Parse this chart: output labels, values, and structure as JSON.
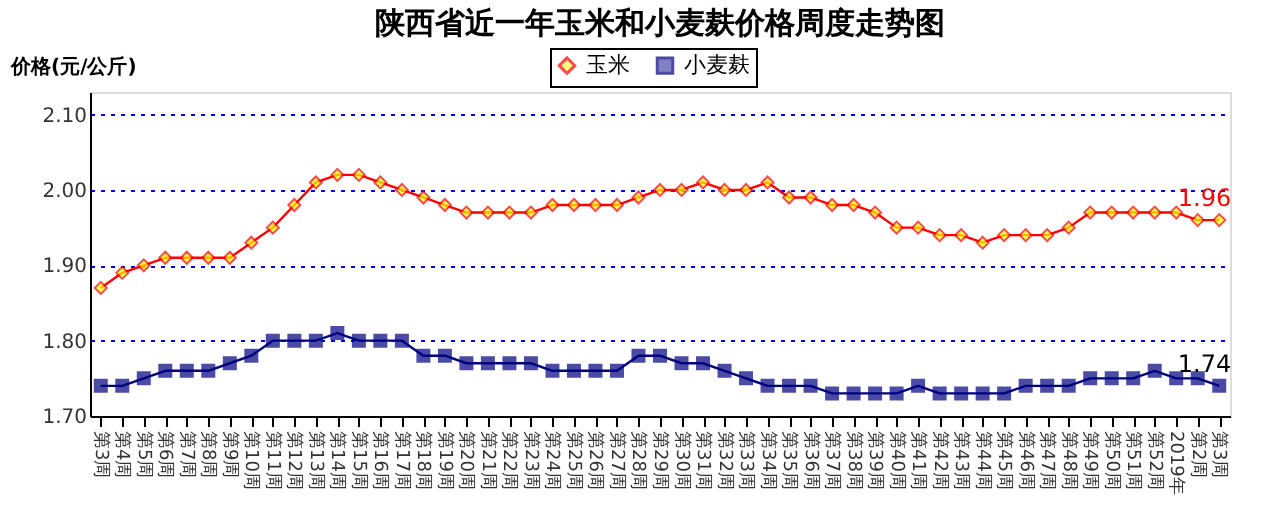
{
  "chart_data": {
    "type": "line",
    "title": "陕西省近一年玉米和小麦麸价格周度走势图",
    "ylabel": "价格(元/公斤)",
    "categories": [
      "第3周",
      "第4周",
      "第5周",
      "第6周",
      "第7周",
      "第8周",
      "第9周",
      "第10周",
      "第11周",
      "第12周",
      "第13周",
      "第14周",
      "第15周",
      "第16周",
      "第17周",
      "第18周",
      "第19周",
      "第20周",
      "第21周",
      "第22周",
      "第23周",
      "第24周",
      "第25周",
      "第26周",
      "第27周",
      "第28周",
      "第29周",
      "第30周",
      "第31周",
      "第32周",
      "第33周",
      "第34周",
      "第35周",
      "第36周",
      "第37周",
      "第38周",
      "第39周",
      "第40周",
      "第41周",
      "第42周",
      "第43周",
      "第44周",
      "第45周",
      "第46周",
      "第47周",
      "第48周",
      "第49周",
      "第50周",
      "第51周",
      "第52周",
      "2019年",
      "第2周",
      "第3周"
    ],
    "series": [
      {
        "name": "玉米",
        "color": "#ff0000",
        "marker": "diamond",
        "values": [
          1.87,
          1.89,
          1.9,
          1.91,
          1.91,
          1.91,
          1.91,
          1.93,
          1.95,
          1.98,
          2.01,
          2.02,
          2.02,
          2.01,
          2.0,
          1.99,
          1.98,
          1.97,
          1.97,
          1.97,
          1.97,
          1.98,
          1.98,
          1.98,
          1.98,
          1.99,
          2.0,
          2.0,
          2.01,
          2.0,
          2.0,
          2.01,
          1.99,
          1.99,
          1.98,
          1.98,
          1.97,
          1.95,
          1.95,
          1.94,
          1.94,
          1.93,
          1.94,
          1.94,
          1.94,
          1.95,
          1.97,
          1.97,
          1.97,
          1.97,
          1.97,
          1.96,
          1.96
        ]
      },
      {
        "name": "小麦麸",
        "color": "#000080",
        "marker": "square",
        "values": [
          1.74,
          1.74,
          1.75,
          1.76,
          1.76,
          1.76,
          1.77,
          1.78,
          1.8,
          1.8,
          1.8,
          1.81,
          1.8,
          1.8,
          1.8,
          1.78,
          1.78,
          1.77,
          1.77,
          1.77,
          1.77,
          1.76,
          1.76,
          1.76,
          1.76,
          1.78,
          1.78,
          1.77,
          1.77,
          1.76,
          1.75,
          1.74,
          1.74,
          1.74,
          1.73,
          1.73,
          1.73,
          1.73,
          1.74,
          1.73,
          1.73,
          1.73,
          1.73,
          1.74,
          1.74,
          1.74,
          1.75,
          1.75,
          1.75,
          1.76,
          1.75,
          1.75,
          1.74
        ]
      }
    ],
    "ylim": [
      1.7,
      2.13
    ],
    "yticks": [
      {
        "value": 1.7,
        "label": "1.70"
      },
      {
        "value": 1.8,
        "label": "1.80"
      },
      {
        "value": 1.9,
        "label": "1.90"
      },
      {
        "value": 2.0,
        "label": "2.00"
      },
      {
        "value": 2.1,
        "label": "2.10"
      }
    ],
    "grid": "y",
    "legend": "top",
    "line_style": "solid",
    "annotations": [
      "1.96",
      "1.74"
    ]
  }
}
